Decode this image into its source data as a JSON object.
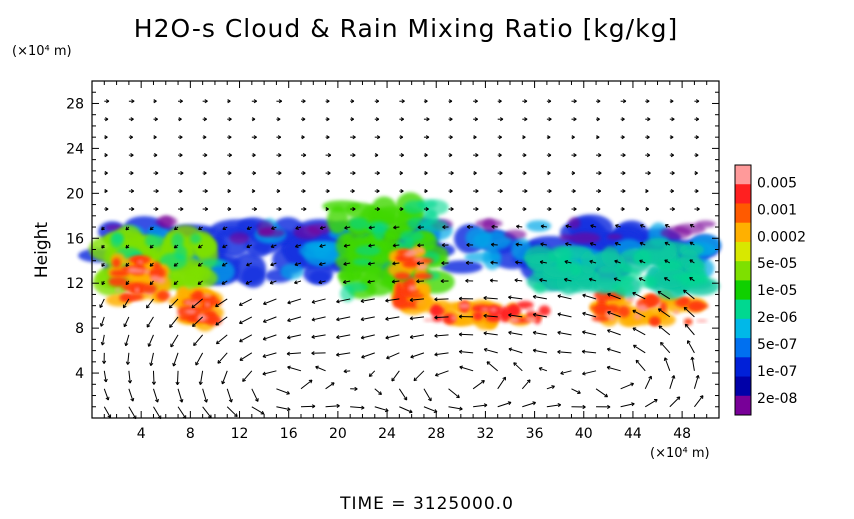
{
  "title": "H2O-s Cloud & Rain Mixing Ratio [kg/kg]",
  "time_label": "TIME = 3125000.0",
  "chart_data": {
    "type": "heatmap",
    "title": "H2O-s Cloud & Rain Mixing Ratio [kg/kg]",
    "ylabel": "Height",
    "xunit": "(×10⁴ m)",
    "yunit": "(×10⁴ m)",
    "xlim": [
      0,
      51
    ],
    "ylim": [
      0,
      30
    ],
    "xticks": [
      "4",
      "8",
      "12",
      "16",
      "20",
      "24",
      "28",
      "32",
      "36",
      "40",
      "44",
      "48"
    ],
    "xtick_values": [
      4,
      8,
      12,
      16,
      20,
      24,
      28,
      32,
      36,
      40,
      44,
      48
    ],
    "yticks": [
      "4",
      "8",
      "12",
      "16",
      "20",
      "24",
      "28"
    ],
    "ytick_values": [
      4,
      8,
      12,
      16,
      20,
      24,
      28
    ],
    "colorbar": {
      "labels": [
        "0.005",
        "0.001",
        "0.0002",
        "5e-05",
        "1e-05",
        "2e-06",
        "5e-07",
        "1e-07",
        "2e-08"
      ],
      "colors": [
        "#ff9a9a",
        "#ff2020",
        "#ff5a00",
        "#ffb000",
        "#d8e800",
        "#7ee000",
        "#10d000",
        "#00d890",
        "#00b8e8",
        "#0070f0",
        "#0020d8",
        "#0000a8",
        "#780098"
      ]
    },
    "cloud_regions": [
      {
        "x": [
          0,
          50
        ],
        "y_bottom": 12.5,
        "y_top": 17,
        "level": "1e-07"
      },
      {
        "x": [
          1,
          10
        ],
        "y_bottom": 12,
        "y_top": 16,
        "level": "5e-05"
      },
      {
        "x": [
          2,
          6
        ],
        "y_bottom": 10.5,
        "y_top": 14,
        "level": "0.001"
      },
      {
        "x": [
          7,
          10
        ],
        "y_bottom": 8.5,
        "y_top": 11,
        "level": "0.001"
      },
      {
        "x": [
          20,
          28
        ],
        "y_bottom": 11,
        "y_top": 19,
        "level": "1e-05"
      },
      {
        "x": [
          25,
          27
        ],
        "y_bottom": 10,
        "y_top": 15,
        "level": "0.001"
      },
      {
        "x": [
          27,
          37
        ],
        "y_bottom": 8.5,
        "y_top": 10,
        "level": "0.005"
      },
      {
        "x": [
          41,
          50
        ],
        "y_bottom": 8.5,
        "y_top": 11,
        "level": "0.001"
      },
      {
        "x": [
          36,
          50
        ],
        "y_bottom": 11.5,
        "y_top": 15,
        "level": "2e-06"
      }
    ],
    "grid": false,
    "overlay": "wind vectors"
  }
}
